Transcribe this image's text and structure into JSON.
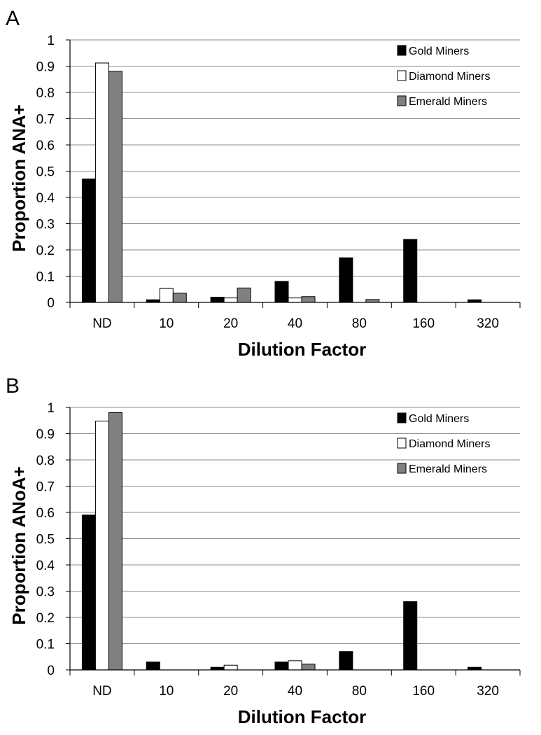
{
  "chart_data": [
    {
      "type": "bar",
      "panel_label": "A",
      "xlabel": "Dilution Factor",
      "ylabel": "Proportion ANA+",
      "categories": [
        "ND",
        "10",
        "20",
        "40",
        "80",
        "160",
        "320"
      ],
      "ylim": [
        0,
        1
      ],
      "yticks": [
        "0",
        "0.1",
        "0.2",
        "0.3",
        "0.4",
        "0.5",
        "0.6",
        "0.7",
        "0.8",
        "0.9",
        "1"
      ],
      "grid": true,
      "legend_position": "top-right",
      "series": [
        {
          "name": "Gold Miners",
          "color": "#000000",
          "values": [
            0.47,
            0.01,
            0.02,
            0.08,
            0.17,
            0.24,
            0.01
          ]
        },
        {
          "name": "Diamond Miners",
          "color": "#ffffff",
          "values": [
            0.912,
            0.053,
            0.017,
            0.017,
            0,
            0,
            0
          ]
        },
        {
          "name": "Emerald Miners",
          "color": "#808080",
          "values": [
            0.88,
            0.035,
            0.055,
            0.022,
            0.011,
            0,
            0
          ]
        }
      ]
    },
    {
      "type": "bar",
      "panel_label": "B",
      "xlabel": "Dilution Factor",
      "ylabel": "Proportion ANoA+",
      "categories": [
        "ND",
        "10",
        "20",
        "40",
        "80",
        "160",
        "320"
      ],
      "ylim": [
        0,
        1
      ],
      "yticks": [
        "0",
        "0.1",
        "0.2",
        "0.3",
        "0.4",
        "0.5",
        "0.6",
        "0.7",
        "0.8",
        "0.9",
        "1"
      ],
      "grid": true,
      "legend_position": "top-right",
      "series": [
        {
          "name": "Gold Miners",
          "color": "#000000",
          "values": [
            0.59,
            0.03,
            0.01,
            0.03,
            0.07,
            0.26,
            0.01
          ]
        },
        {
          "name": "Diamond Miners",
          "color": "#ffffff",
          "values": [
            0.948,
            0,
            0.018,
            0.035,
            0,
            0,
            0
          ]
        },
        {
          "name": "Emerald Miners",
          "color": "#808080",
          "values": [
            0.98,
            0,
            0,
            0.022,
            0,
            0,
            0
          ]
        }
      ]
    }
  ]
}
